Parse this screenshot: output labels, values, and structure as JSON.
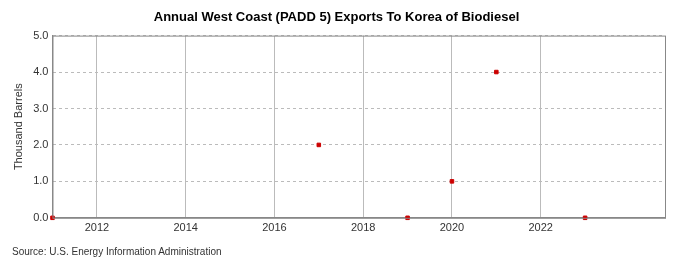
{
  "chart_data": {
    "type": "scatter",
    "title": "Annual West Coast (PADD 5) Exports To Korea of Biodiesel",
    "y_label": "Thousand Barrels",
    "source": "Source: U.S. Energy Information Administration",
    "x": [
      2011,
      2017,
      2019,
      2020,
      2021,
      2023
    ],
    "values": [
      0,
      2,
      0,
      1,
      4,
      0
    ],
    "color": "#cc0000",
    "marker": "square",
    "xlim": [
      2011,
      2024.8
    ],
    "xticks": [
      2012,
      2014,
      2016,
      2018,
      2020,
      2022
    ],
    "ylim": [
      0,
      5
    ],
    "yticks": [
      {
        "value": 0,
        "label": "0.0"
      },
      {
        "value": 1,
        "label": "1.0"
      },
      {
        "value": 2,
        "label": "2.0"
      },
      {
        "value": 3,
        "label": "3.0"
      },
      {
        "value": 4,
        "label": "4.0"
      },
      {
        "value": 5,
        "label": "5.0"
      }
    ],
    "grid": true
  }
}
